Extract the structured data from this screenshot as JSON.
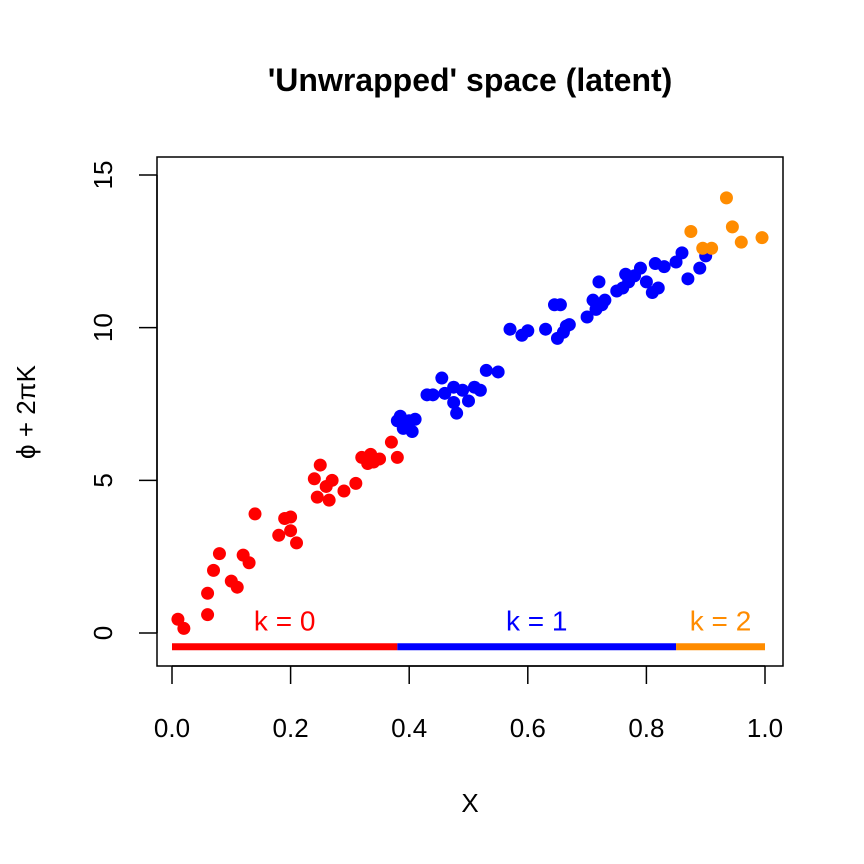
{
  "chart_data": {
    "type": "scatter",
    "title": "'Unwrapped' space (latent)",
    "xlabel": "X",
    "ylabel_parts": [
      "ϕ",
      " + ",
      "2π",
      "K"
    ],
    "xlim": [
      0,
      1
    ],
    "ylim": [
      -1,
      15.5
    ],
    "x_ticks": [
      "0.0",
      "0.2",
      "0.4",
      "0.6",
      "0.8",
      "1.0"
    ],
    "y_ticks": [
      "0",
      "5",
      "10",
      "15"
    ],
    "grid": false,
    "colors": {
      "k0": "#ff0000",
      "k1": "#0000ff",
      "k2": "#ff8c00"
    },
    "series": [
      {
        "color_key": "k0",
        "points": [
          [
            0.01,
            0.45
          ],
          [
            0.02,
            0.15
          ],
          [
            0.06,
            0.6
          ],
          [
            0.06,
            1.3
          ],
          [
            0.07,
            2.05
          ],
          [
            0.08,
            2.6
          ],
          [
            0.1,
            1.7
          ],
          [
            0.11,
            1.5
          ],
          [
            0.12,
            2.55
          ],
          [
            0.13,
            2.3
          ],
          [
            0.14,
            3.9
          ],
          [
            0.18,
            3.2
          ],
          [
            0.19,
            3.75
          ],
          [
            0.2,
            3.8
          ],
          [
            0.2,
            3.35
          ],
          [
            0.21,
            2.95
          ],
          [
            0.24,
            5.05
          ],
          [
            0.245,
            4.45
          ],
          [
            0.25,
            5.5
          ],
          [
            0.26,
            4.8
          ],
          [
            0.265,
            4.35
          ],
          [
            0.27,
            5.0
          ],
          [
            0.29,
            4.65
          ],
          [
            0.31,
            4.9
          ],
          [
            0.32,
            5.75
          ],
          [
            0.33,
            5.55
          ],
          [
            0.335,
            5.85
          ],
          [
            0.34,
            5.6
          ],
          [
            0.35,
            5.7
          ],
          [
            0.37,
            6.25
          ],
          [
            0.38,
            5.75
          ]
        ]
      },
      {
        "color_key": "k1",
        "points": [
          [
            0.38,
            6.95
          ],
          [
            0.385,
            7.1
          ],
          [
            0.39,
            6.7
          ],
          [
            0.39,
            6.85
          ],
          [
            0.4,
            6.95
          ],
          [
            0.405,
            6.6
          ],
          [
            0.41,
            7.0
          ],
          [
            0.43,
            7.8
          ],
          [
            0.44,
            7.8
          ],
          [
            0.455,
            8.35
          ],
          [
            0.46,
            7.85
          ],
          [
            0.475,
            8.05
          ],
          [
            0.475,
            7.55
          ],
          [
            0.48,
            7.2
          ],
          [
            0.49,
            7.95
          ],
          [
            0.5,
            7.6
          ],
          [
            0.51,
            8.05
          ],
          [
            0.52,
            7.95
          ],
          [
            0.53,
            8.6
          ],
          [
            0.55,
            8.55
          ],
          [
            0.57,
            9.95
          ],
          [
            0.59,
            9.75
          ],
          [
            0.6,
            9.9
          ],
          [
            0.63,
            9.95
          ],
          [
            0.645,
            10.75
          ],
          [
            0.65,
            9.65
          ],
          [
            0.655,
            10.75
          ],
          [
            0.66,
            9.85
          ],
          [
            0.665,
            10.05
          ],
          [
            0.67,
            10.1
          ],
          [
            0.7,
            10.35
          ],
          [
            0.71,
            10.9
          ],
          [
            0.715,
            10.6
          ],
          [
            0.72,
            11.5
          ],
          [
            0.725,
            10.75
          ],
          [
            0.73,
            10.9
          ],
          [
            0.75,
            11.2
          ],
          [
            0.76,
            11.3
          ],
          [
            0.765,
            11.75
          ],
          [
            0.77,
            11.5
          ],
          [
            0.78,
            11.7
          ],
          [
            0.79,
            11.95
          ],
          [
            0.8,
            11.5
          ],
          [
            0.81,
            11.15
          ],
          [
            0.815,
            12.1
          ],
          [
            0.82,
            11.3
          ],
          [
            0.83,
            12.0
          ],
          [
            0.85,
            12.15
          ],
          [
            0.86,
            12.45
          ],
          [
            0.87,
            11.6
          ],
          [
            0.89,
            11.95
          ],
          [
            0.9,
            12.35
          ]
        ]
      },
      {
        "color_key": "k2",
        "points": [
          [
            0.875,
            13.15
          ],
          [
            0.895,
            12.6
          ],
          [
            0.91,
            12.6
          ],
          [
            0.935,
            14.25
          ],
          [
            0.945,
            13.3
          ],
          [
            0.96,
            12.8
          ],
          [
            0.995,
            12.95
          ]
        ]
      }
    ],
    "k_segments": [
      {
        "label": "k = 0",
        "x_start": 0.0,
        "x_end": 0.38,
        "color_key": "k0"
      },
      {
        "label": "k = 1",
        "x_start": 0.38,
        "x_end": 0.85,
        "color_key": "k1"
      },
      {
        "label": "k = 2",
        "x_start": 0.85,
        "x_end": 1.0,
        "color_key": "k2"
      }
    ],
    "k_segment_y": -0.45
  }
}
